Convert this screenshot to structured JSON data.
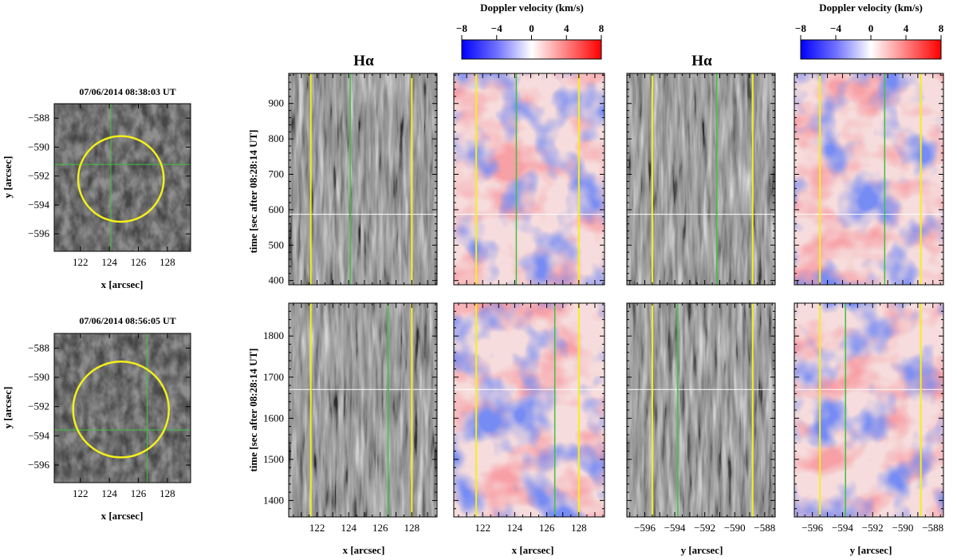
{
  "colors": {
    "yellow": "#f3f01a",
    "green": "#3fc23f",
    "red": "#e21a1a",
    "blue": "#1a2fe6",
    "grey": "#8a8a8a"
  },
  "colorbars": [
    {
      "label": "Doppler velocity (km/s)",
      "ticks": [
        "−8",
        "−4",
        "0",
        "4",
        "8"
      ],
      "range": [
        -8,
        8
      ]
    },
    {
      "label": "Doppler velocity (km/s)",
      "ticks": [
        "−8",
        "−4",
        "0",
        "4",
        "8"
      ],
      "range": [
        -8,
        8
      ]
    }
  ],
  "maps": [
    {
      "title": "07/06/2014   08:38:03 UT",
      "xlabel": "x [arcsec]",
      "ylabel": "y [arcsec]",
      "xticks": [
        "122",
        "124",
        "126",
        "128"
      ],
      "yticks": [
        "−588",
        "−590",
        "−592",
        "−594",
        "−596"
      ],
      "xrange": [
        120.2,
        129.6
      ],
      "yrange": [
        -597.2,
        -587.0
      ],
      "circle": {
        "x": 124.8,
        "y": -592.2,
        "r": 2.95
      },
      "cross": {
        "x": 124.1,
        "y": -591.2
      }
    },
    {
      "title": "07/06/2014   08:56:05 UT",
      "xlabel": "x [arcsec]",
      "ylabel": "y [arcsec]",
      "xticks": [
        "122",
        "124",
        "126",
        "128"
      ],
      "yticks": [
        "−588",
        "−590",
        "−592",
        "−594",
        "−596"
      ],
      "xrange": [
        120.2,
        129.6
      ],
      "yrange": [
        -597.2,
        -587.0
      ],
      "circle": {
        "x": 124.8,
        "y": -592.2,
        "r": 3.3
      },
      "cross": {
        "x": 126.6,
        "y": -593.6
      }
    }
  ],
  "column_titles": [
    "Hα",
    "Hα"
  ],
  "time_axis_label": "time [sec after 08:28:14 UT]",
  "x_panels": {
    "xlabel": "x [arcsec]",
    "xticks": [
      "122",
      "124",
      "126",
      "128"
    ],
    "xrange": [
      120.2,
      129.6
    ],
    "yellow_lines": [
      121.6,
      128.0
    ]
  },
  "y_panels": {
    "xlabel": "y [arcsec]",
    "xticks": [
      "−596",
      "−594",
      "−592",
      "−590",
      "−588"
    ],
    "xrange": [
      -597.2,
      -587.3
    ],
    "yellow_lines": [
      -595.5,
      -588.8
    ]
  },
  "rows": [
    {
      "yticks": [
        "400",
        "500",
        "600",
        "700",
        "800",
        "900"
      ],
      "trange": [
        388,
        985
      ],
      "white_line": 587,
      "green_x": 124.1,
      "green_y": -591.2
    },
    {
      "yticks": [
        "1400",
        "1500",
        "1600",
        "1700",
        "1800"
      ],
      "trange": [
        1360,
        1880
      ],
      "white_line": 1670,
      "green_x": 126.5,
      "green_y": -593.8
    }
  ]
}
